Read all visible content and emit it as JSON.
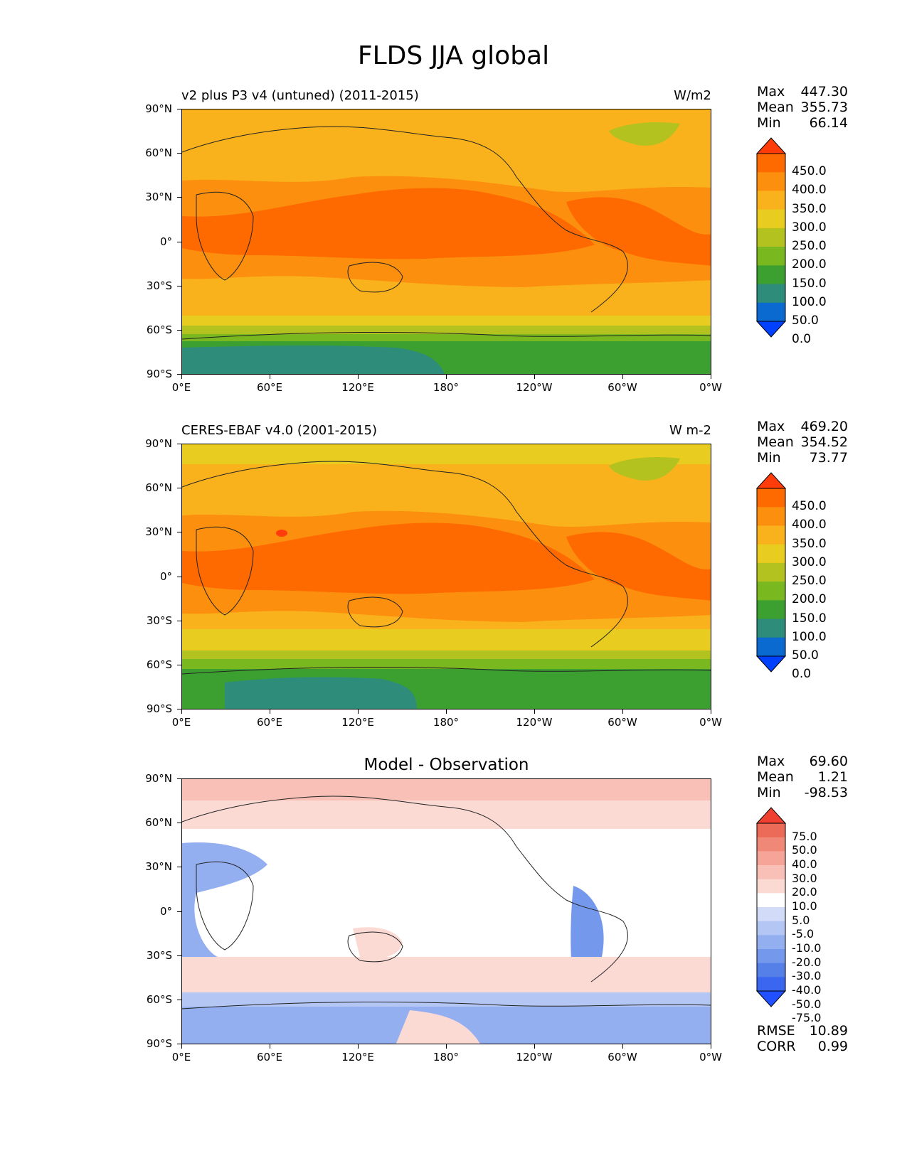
{
  "figure": {
    "title": "FLDS JJA global"
  },
  "x_ticks": [
    "0°E",
    "60°E",
    "120°E",
    "180°",
    "120°W",
    "60°W",
    "0°W"
  ],
  "y_ticks": [
    "90°N",
    "60°N",
    "30°N",
    "0°",
    "30°S",
    "60°S",
    "90°S"
  ],
  "colors": {
    "abs_levels": [
      "#0040ff",
      "#0a6ad0",
      "#2e8c7a",
      "#3ca030",
      "#7ab820",
      "#b3c21e",
      "#e8cc20",
      "#fab21c",
      "#fc8f0e",
      "#ff6a00",
      "#ff3c0a"
    ],
    "diff_levels": [
      "#2050ff",
      "#3a66f0",
      "#5580e8",
      "#7498ec",
      "#94aff0",
      "#b4c6f4",
      "#d2dcf8",
      "#ffffff",
      "#fbdad4",
      "#f8c0b6",
      "#f5a497",
      "#f08878",
      "#ec6a58",
      "#f04030"
    ],
    "land_outline": "#222222"
  },
  "panels": [
    {
      "title_left": "v2 plus P3 v4 (untuned) (2011-2015)",
      "title_right": "W/m2",
      "stats": {
        "max_label": "Max",
        "max": "447.30",
        "mean_label": "Mean",
        "mean": "355.73",
        "min_label": "Min",
        "min": "66.14"
      },
      "colorbar": {
        "labels": [
          "450.0",
          "400.0",
          "350.0",
          "300.0",
          "250.0",
          "200.0",
          "150.0",
          "100.0",
          "50.0",
          "0.0"
        ]
      }
    },
    {
      "title_left": "CERES-EBAF v4.0 (2001-2015)",
      "title_right": "W m-2",
      "stats": {
        "max_label": "Max",
        "max": "469.20",
        "mean_label": "Mean",
        "mean": "354.52",
        "min_label": "Min",
        "min": "73.77"
      },
      "colorbar": {
        "labels": [
          "450.0",
          "400.0",
          "350.0",
          "300.0",
          "250.0",
          "200.0",
          "150.0",
          "100.0",
          "50.0",
          "0.0"
        ]
      }
    },
    {
      "title_center": "Model - Observation",
      "stats": {
        "max_label": "Max",
        "max": "69.60",
        "mean_label": "Mean",
        "mean": "1.21",
        "min_label": "Min",
        "min": "-98.53"
      },
      "colorbar": {
        "labels": [
          "75.0",
          "50.0",
          "40.0",
          "30.0",
          "20.0",
          "10.0",
          "5.0",
          "-5.0",
          "-10.0",
          "-20.0",
          "-30.0",
          "-40.0",
          "-50.0",
          "-75.0"
        ]
      },
      "rmse_label": "RMSE",
      "rmse": "10.89",
      "corr_label": "CORR",
      "corr": "0.99"
    }
  ]
}
